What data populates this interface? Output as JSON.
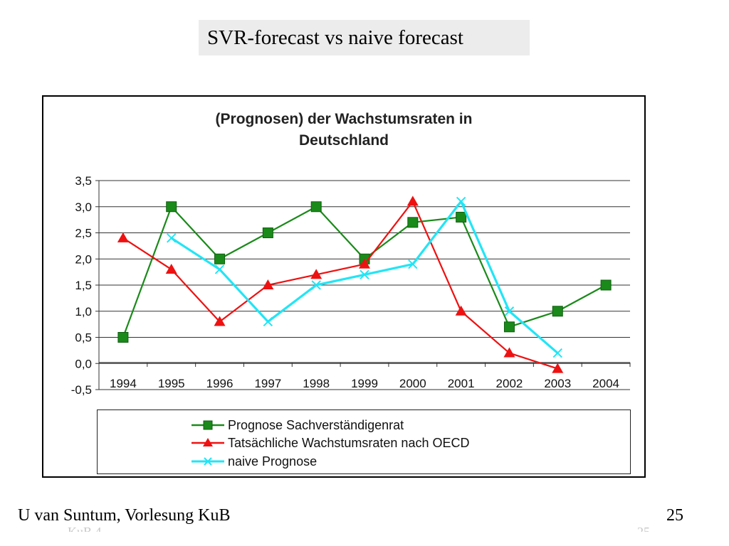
{
  "slide": {
    "title": "SVR-forecast vs naive forecast",
    "footer_left": "U van Suntum, Vorlesung KuB",
    "footer_right": "25",
    "ghost_left": "KuB 4",
    "ghost_right": "25"
  },
  "chart_data": {
    "type": "line",
    "title_line1": "(Prognosen) der Wachstumsraten in",
    "title_line2": "Deutschland",
    "categories": [
      "1994",
      "1995",
      "1996",
      "1997",
      "1998",
      "1999",
      "2000",
      "2001",
      "2002",
      "2003",
      "2004"
    ],
    "y_ticks": [
      "3,5",
      "3,0",
      "2,5",
      "2,0",
      "1,5",
      "1,0",
      "0,5",
      "0,0",
      "-0,5"
    ],
    "ylim": [
      -0.5,
      3.5
    ],
    "grid": true,
    "legend_position": "bottom",
    "series": [
      {
        "name": "Prognose Sachverständigenrat",
        "color": "#1a8a1a",
        "marker": "square",
        "values": [
          0.5,
          3.0,
          2.0,
          2.5,
          3.0,
          2.0,
          2.7,
          2.8,
          0.7,
          1.0,
          1.5
        ]
      },
      {
        "name": "Tatsächliche Wachstumsraten nach OECD",
        "color": "#ee1111",
        "marker": "triangle",
        "values": [
          2.4,
          1.8,
          0.8,
          1.5,
          1.7,
          1.9,
          3.1,
          1.0,
          0.2,
          -0.1,
          null
        ]
      },
      {
        "name": "naive Prognose",
        "color": "#22e5f5",
        "marker": "x",
        "values": [
          null,
          2.4,
          1.8,
          0.8,
          1.5,
          1.7,
          1.9,
          3.1,
          1.0,
          0.2,
          null
        ]
      }
    ]
  }
}
